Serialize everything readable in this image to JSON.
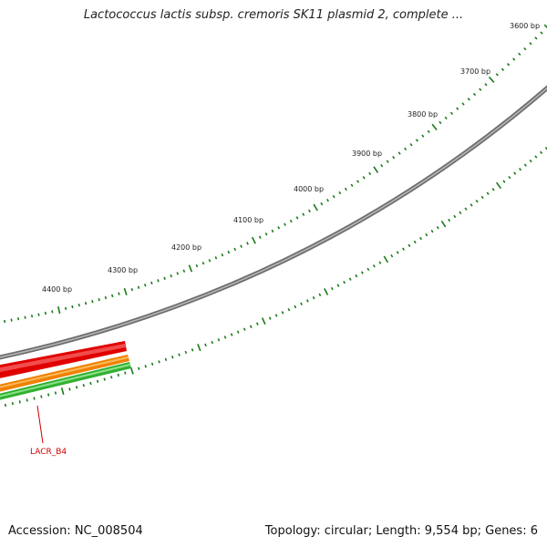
{
  "title": "Lactococcus lactis subsp. cremoris SK11 plasmid 2, complete ...",
  "accession_line": "Accession: NC_008504",
  "summary_line": "Topology: circular; Length: 9,554 bp; Genes: 6",
  "ruler": {
    "labels": [
      "3600 bp",
      "3700 bp",
      "3800 bp",
      "3900 bp",
      "4000 bp",
      "4100 bp",
      "4200 bp",
      "4300 bp",
      "4400 bp"
    ],
    "tick_color": "#1a7a1a"
  },
  "backbone_color": "#808080",
  "features": [
    {
      "name": "forward-gene-track",
      "color": "#e00000",
      "highlight": "#ff9a9a"
    },
    {
      "name": "orange-gene-track",
      "color": "#f08000",
      "highlight": "#ffd080"
    },
    {
      "name": "green-gene-track",
      "color": "#30b030",
      "highlight": "#a8f0a8"
    }
  ],
  "gene_label": {
    "text": "LACR_B4",
    "color": "#cc0000"
  }
}
